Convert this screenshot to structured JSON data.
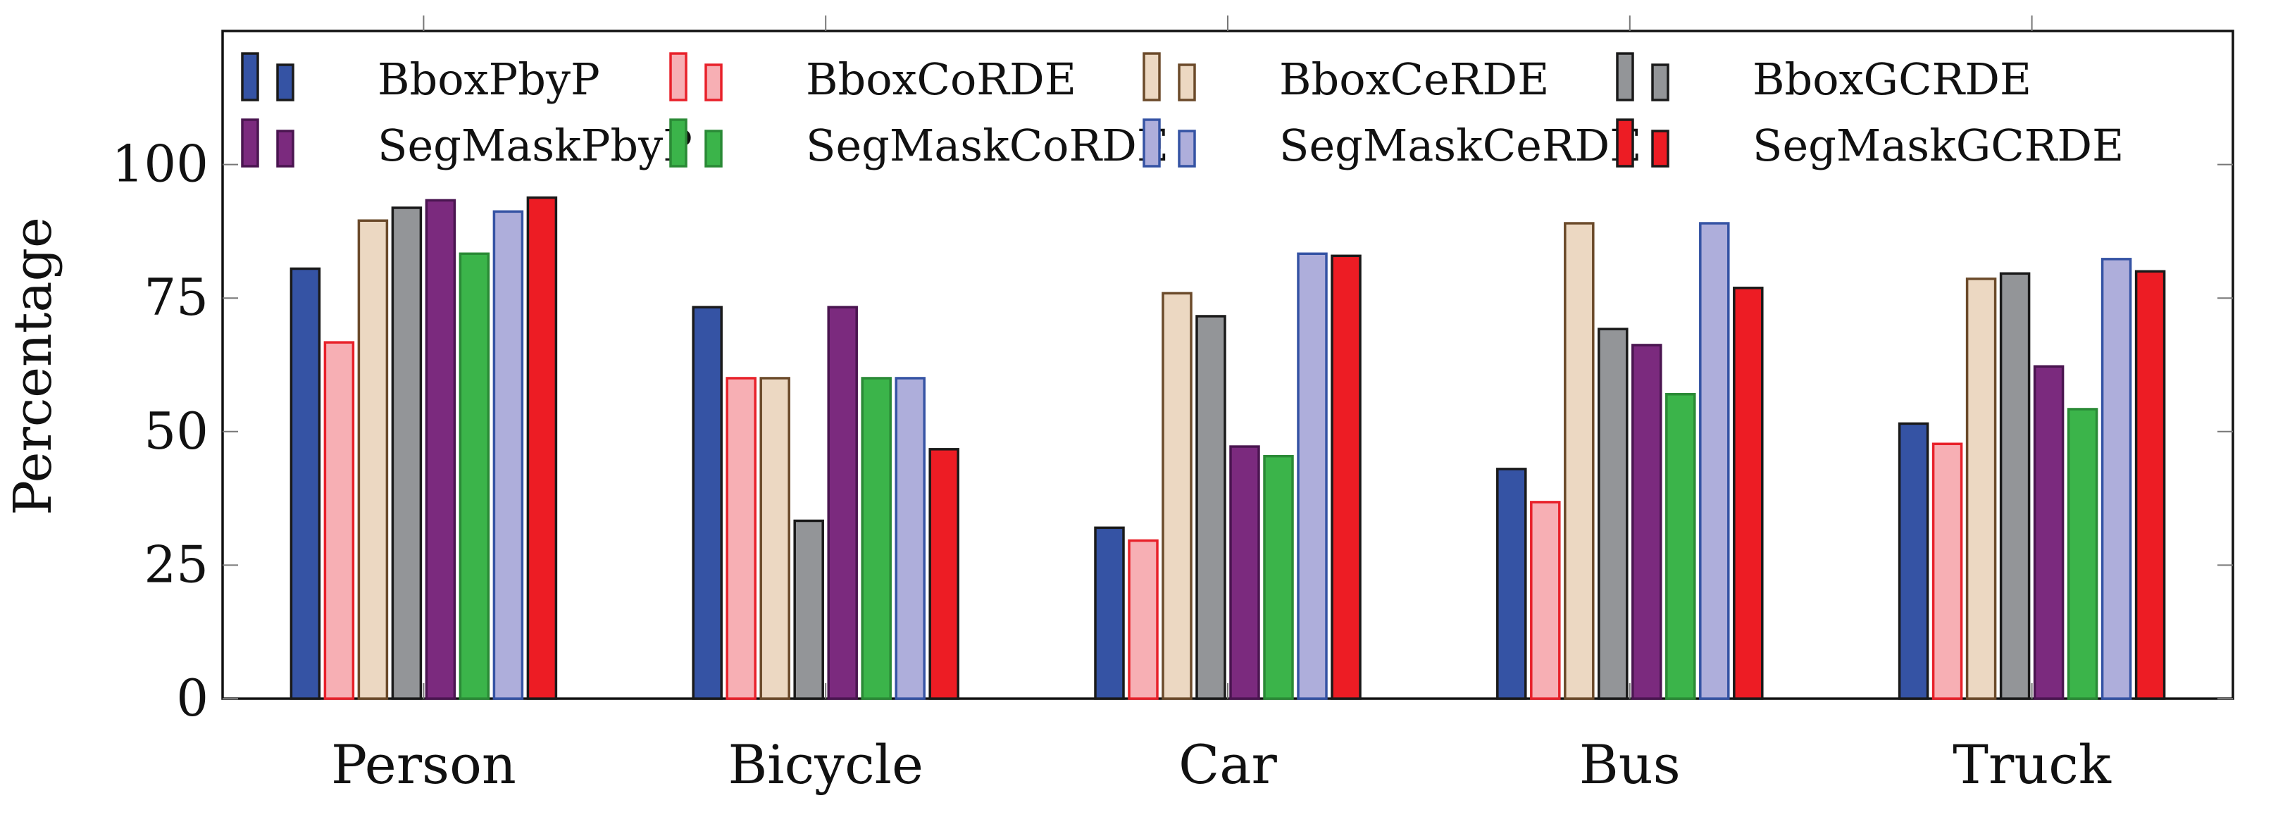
{
  "chart_data": {
    "type": "bar",
    "title": "",
    "xlabel": "",
    "ylabel": "Percentage",
    "ylim": [
      0,
      125
    ],
    "yticks": [
      0,
      25,
      50,
      75,
      100
    ],
    "grid": false,
    "legend_position": "top",
    "categories": [
      "Person",
      "Bicycle",
      "Car",
      "Bus",
      "Truck"
    ],
    "series": [
      {
        "name": "BboxPbyP",
        "fill": "#3553a4",
        "stroke": "#1a1a1a",
        "values": [
          80.5,
          73.3,
          32.0,
          43.0,
          51.5
        ]
      },
      {
        "name": "BboxCoRDE",
        "fill": "#f7afb4",
        "stroke": "#e8212a",
        "values": [
          66.7,
          60.0,
          29.6,
          36.8,
          47.7
        ]
      },
      {
        "name": "BboxCeRDE",
        "fill": "#ecd8c2",
        "stroke": "#6b4a2a",
        "values": [
          89.5,
          60.0,
          75.9,
          89.0,
          78.6
        ]
      },
      {
        "name": "BboxGCRDE",
        "fill": "#939598",
        "stroke": "#1a1a1a",
        "values": [
          91.9,
          33.3,
          71.6,
          69.2,
          79.6
        ]
      },
      {
        "name": "SegMaskPbyP",
        "fill": "#7b2a7e",
        "stroke": "#4a1550",
        "values": [
          93.3,
          73.3,
          47.2,
          66.2,
          62.2
        ]
      },
      {
        "name": "SegMaskCoRDE",
        "fill": "#3bb44a",
        "stroke": "#2a8a36",
        "values": [
          83.3,
          60.0,
          45.4,
          57.0,
          54.2
        ]
      },
      {
        "name": "SegMaskCeRDE",
        "fill": "#aeaedb",
        "stroke": "#3553a4",
        "values": [
          91.2,
          60.0,
          83.3,
          89.0,
          82.3
        ]
      },
      {
        "name": "SegMaskGCRDE",
        "fill": "#ed1c24",
        "stroke": "#1a1a1a",
        "values": [
          93.8,
          46.7,
          82.9,
          76.9,
          80.0
        ]
      }
    ]
  }
}
